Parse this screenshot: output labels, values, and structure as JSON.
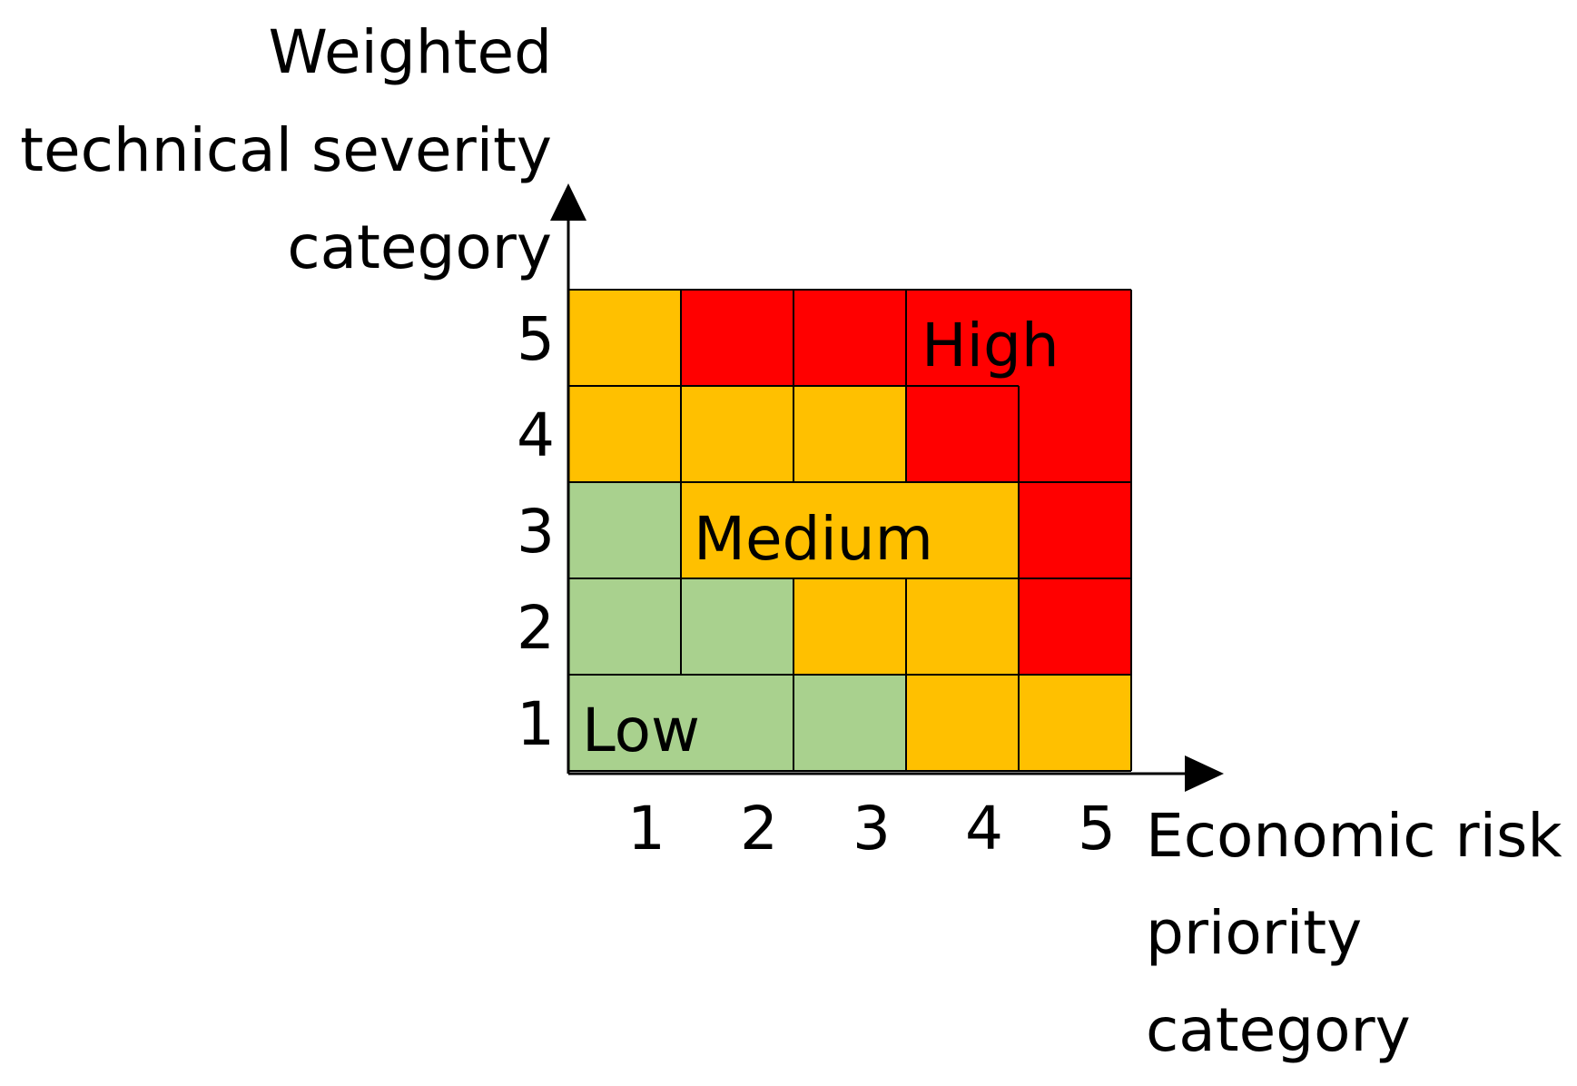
{
  "y_axis": {
    "title_lines": [
      "Weighted",
      "technical severity",
      "category"
    ],
    "ticks": [
      "1",
      "2",
      "3",
      "4",
      "5"
    ]
  },
  "x_axis": {
    "title_lines": [
      "Economic risk",
      "priority",
      "category"
    ],
    "ticks": [
      "1",
      "2",
      "3",
      "4",
      "5"
    ]
  },
  "zone_labels": {
    "low": "Low",
    "medium": "Medium",
    "high": "High"
  },
  "colors": {
    "low": "#a9d18e",
    "medium": "#ffc000",
    "high": "#ff0000",
    "grid": "#000000"
  },
  "chart_data": {
    "type": "heatmap",
    "x_categories": [
      "1",
      "2",
      "3",
      "4",
      "5"
    ],
    "y_categories": [
      "1",
      "2",
      "3",
      "4",
      "5"
    ],
    "levels": [
      "Low",
      "Medium",
      "High"
    ],
    "rows": [
      {
        "y": "5",
        "cells": [
          "Medium",
          "High",
          "High",
          "High",
          "High"
        ]
      },
      {
        "y": "4",
        "cells": [
          "Medium",
          "Medium",
          "Medium",
          "High",
          "High"
        ]
      },
      {
        "y": "3",
        "cells": [
          "Low",
          "Medium",
          "Medium",
          "Medium",
          "High"
        ]
      },
      {
        "y": "2",
        "cells": [
          "Low",
          "Low",
          "Medium",
          "Medium",
          "High"
        ]
      },
      {
        "y": "1",
        "cells": [
          "Low",
          "Low",
          "Low",
          "Medium",
          "Medium"
        ]
      }
    ]
  }
}
